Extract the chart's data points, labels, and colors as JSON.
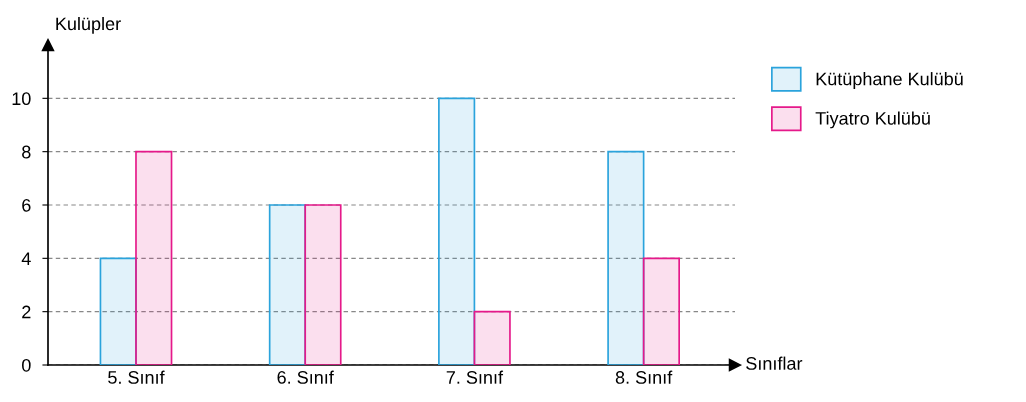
{
  "chart_data": {
    "type": "bar",
    "xlabel": "Sınıflar",
    "ylabel": "Kulüpler",
    "categories": [
      "5. Sınıf",
      "6. Sınıf",
      "7. Sınıf",
      "8. Sınıf"
    ],
    "series": [
      {
        "name": "Kütüphane Kulübü",
        "color": "#2aa3dc",
        "values": [
          4,
          6,
          10,
          8
        ]
      },
      {
        "name": "Tiyatro Kulübü",
        "color": "#e5198a",
        "values": [
          8,
          6,
          2,
          4
        ]
      }
    ],
    "ylim": [
      0,
      12
    ],
    "yticks": [
      0,
      2,
      4,
      6,
      8,
      10
    ],
    "grid": "y",
    "legend": "top right"
  }
}
